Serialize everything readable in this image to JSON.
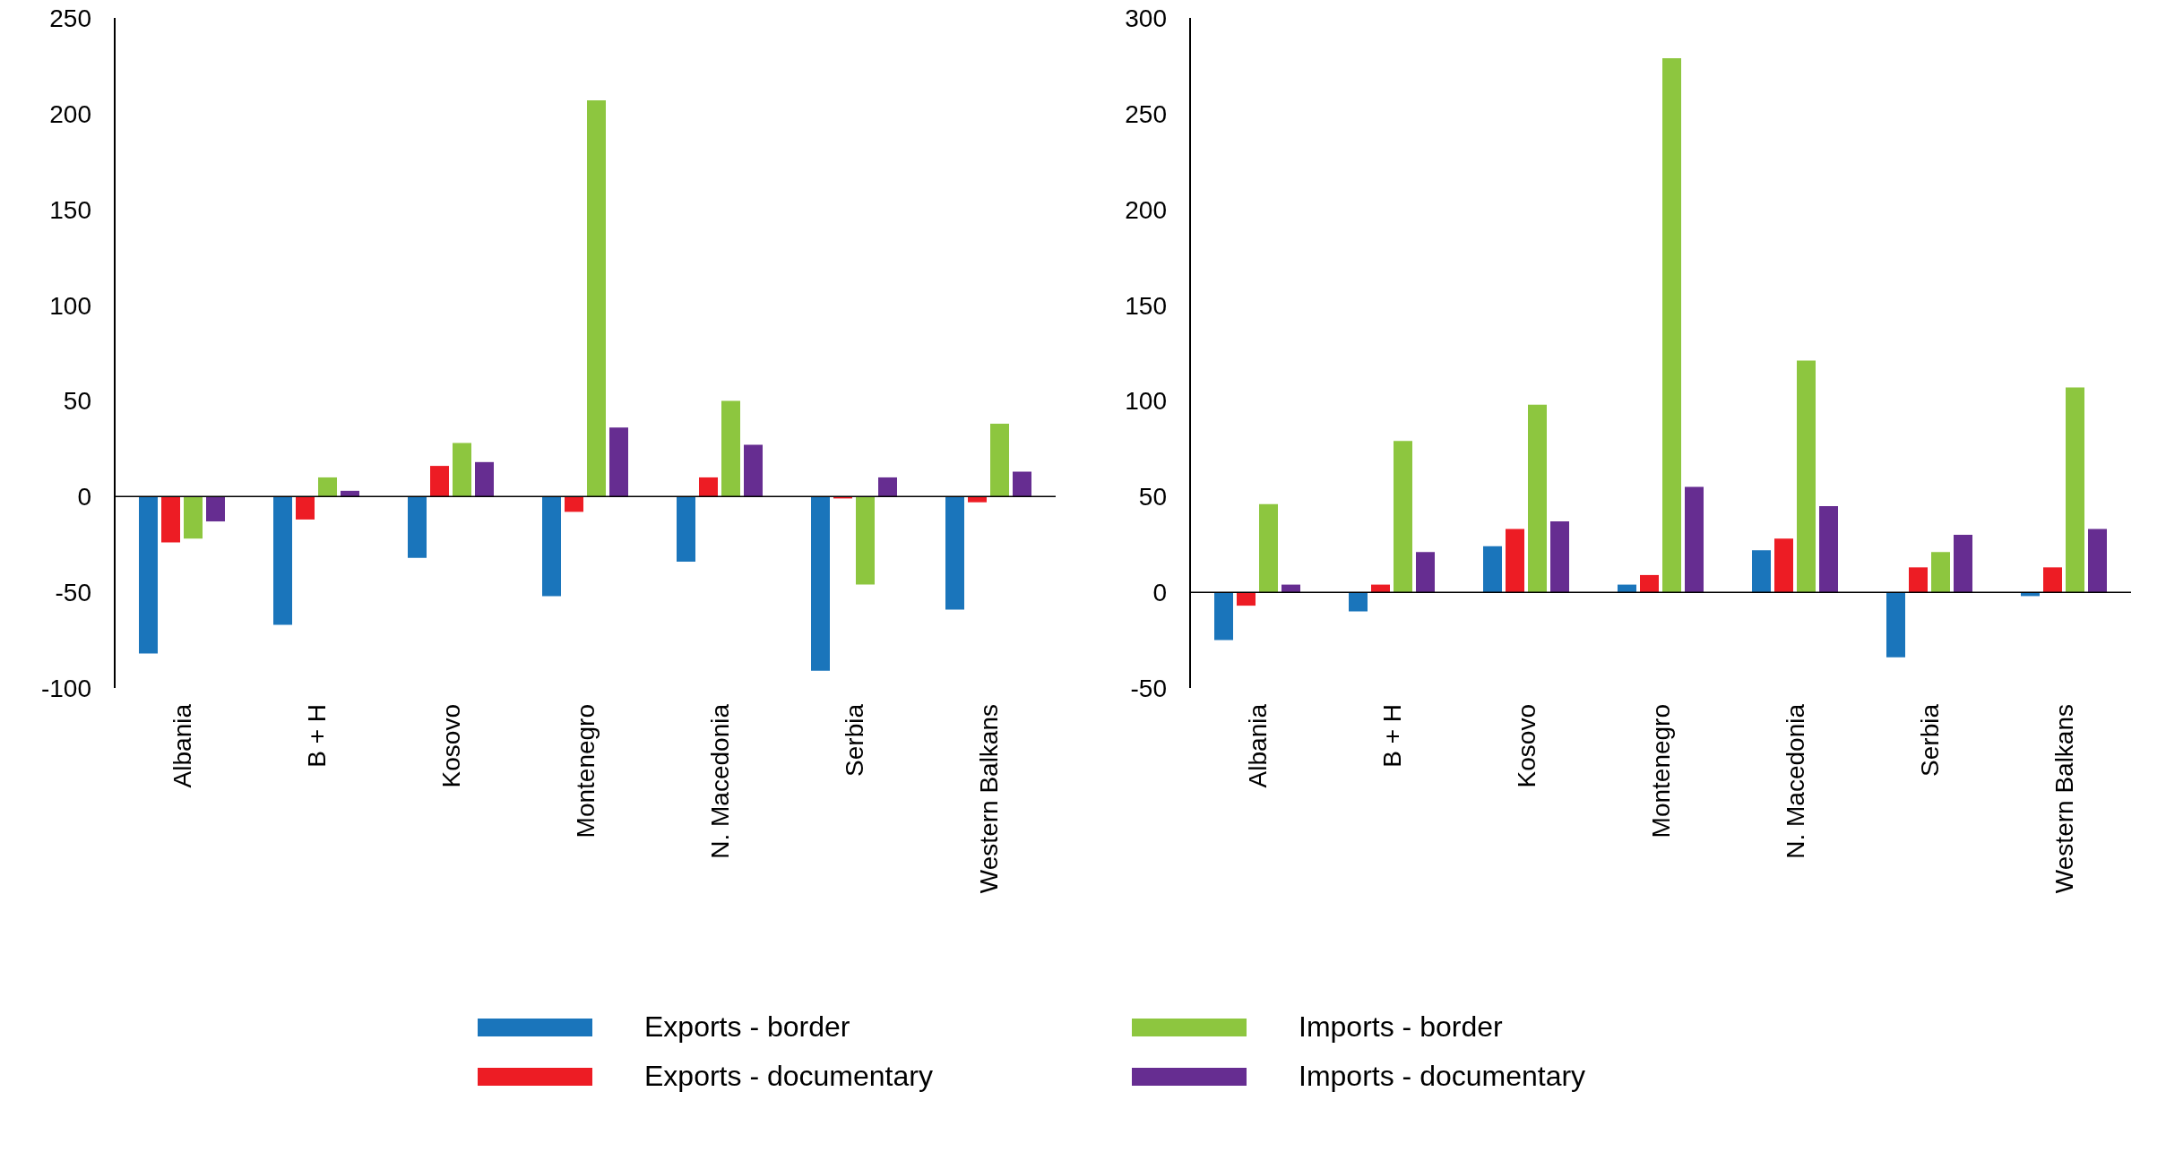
{
  "chart_data": [
    {
      "type": "bar",
      "categories": [
        "Albania",
        "B + H",
        "Kosovo",
        "Montenegro",
        "N. Macedonia",
        "Serbia",
        "Western Balkans"
      ],
      "ylim": [
        -100,
        250
      ],
      "yticks": [
        -100,
        -50,
        0,
        50,
        100,
        150,
        200,
        250
      ],
      "ref_lines": [
        {
          "axis": "y",
          "value": 0,
          "color": "#000000"
        }
      ],
      "legend": "bottom",
      "series": [
        {
          "name": "Exports - border",
          "color": "#1a75bb",
          "values": [
            -82,
            -67,
            -32,
            -52,
            -34,
            -91,
            -59
          ]
        },
        {
          "name": "Exports - documentary",
          "color": "#ed1c24",
          "values": [
            -24,
            -12,
            16,
            -8,
            10,
            -1,
            -3
          ]
        },
        {
          "name": "Imports - border",
          "color": "#8dc63f",
          "values": [
            -22,
            10,
            28,
            207,
            50,
            -46,
            38
          ]
        },
        {
          "name": "Imports - documentary",
          "color": "#662d91",
          "values": [
            -13,
            3,
            18,
            36,
            27,
            10,
            13
          ]
        }
      ]
    },
    {
      "type": "bar",
      "categories": [
        "Albania",
        "B + H",
        "Kosovo",
        "Montenegro",
        "N. Macedonia",
        "Serbia",
        "Western Balkans"
      ],
      "ylim": [
        -50,
        300
      ],
      "yticks": [
        -50,
        0,
        50,
        100,
        150,
        200,
        250,
        300
      ],
      "ref_lines": [
        {
          "axis": "y",
          "value": 0,
          "color": "#000000"
        }
      ],
      "series": [
        {
          "color": "#1a75bb",
          "values": [
            -25,
            -10,
            24,
            4,
            22,
            -34,
            -2
          ]
        },
        {
          "color": "#ed1c24",
          "values": [
            -7,
            4,
            33,
            9,
            28,
            13,
            13
          ]
        },
        {
          "color": "#8dc63f",
          "values": [
            46,
            79,
            98,
            279,
            121,
            21,
            107
          ]
        },
        {
          "color": "#662d91",
          "values": [
            4,
            21,
            37,
            55,
            45,
            30,
            33
          ]
        }
      ]
    }
  ]
}
